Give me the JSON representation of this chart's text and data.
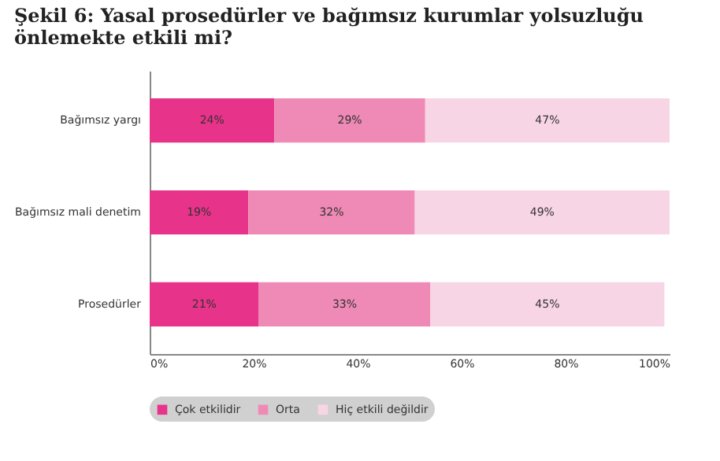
{
  "chart_data": {
    "type": "bar",
    "orientation": "horizontal",
    "stacked": true,
    "title": [
      "Şekil 6: Yasal prosedürler ve bağımsız kurumlar yolsuzluğu",
      "önlemekte etkili mi?"
    ],
    "categories": [
      "Bağımsız yargı",
      "Bağımsız mali denetim",
      "Prosedürler"
    ],
    "series": [
      {
        "name": "Çok etkilidir",
        "color": "#e8338a",
        "values": [
          24,
          19,
          21
        ],
        "value_labels": [
          "24%",
          "19%",
          "21%"
        ]
      },
      {
        "name": "Orta",
        "color": "#ef8ab6",
        "values": [
          29,
          32,
          33
        ],
        "value_labels": [
          "29%",
          "32%",
          "33%"
        ]
      },
      {
        "name": "Hiç etkili değildir",
        "color": "#f8d5e5",
        "values": [
          47,
          49,
          45
        ],
        "value_labels": [
          "47%",
          "49%",
          "45%"
        ]
      }
    ],
    "xlim": [
      0,
      100
    ],
    "xticks": [
      {
        "value": 0,
        "label": "0%"
      },
      {
        "value": 20,
        "label": "20%"
      },
      {
        "value": 40,
        "label": "40%"
      },
      {
        "value": 60,
        "label": "60%"
      },
      {
        "value": 80,
        "label": "80%"
      },
      {
        "value": 100,
        "label": "100%"
      }
    ],
    "grid": false,
    "legend": "bottom"
  }
}
